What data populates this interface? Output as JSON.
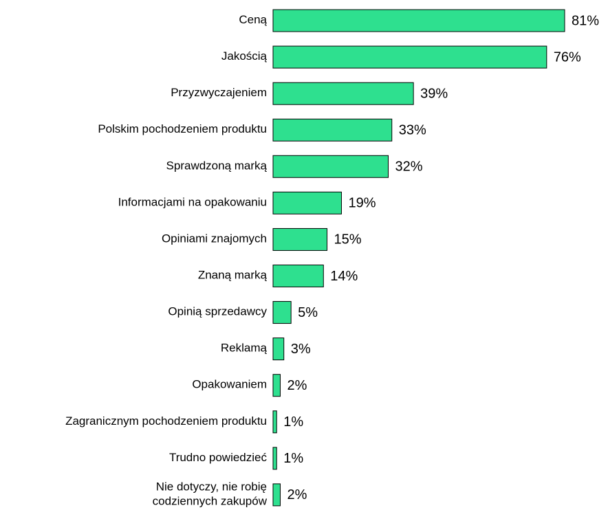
{
  "chart_data": {
    "type": "bar",
    "orientation": "horizontal",
    "categories": [
      "Ceną",
      "Jakością",
      "Przyzwyczajeniem",
      "Polskim pochodzeniem produktu",
      "Sprawdzoną marką",
      "Informacjami na opakowaniu",
      "Opiniami znajomych",
      "Znaną marką",
      "Opinią sprzedawcy",
      "Reklamą",
      "Opakowaniem",
      "Zagranicznym pochodzeniem produktu",
      "Trudno powiedzieć",
      "Nie dotyczy, nie robię\ncodziennych zakupów"
    ],
    "values": [
      81,
      76,
      39,
      33,
      32,
      19,
      15,
      14,
      5,
      3,
      2,
      1,
      1,
      2
    ],
    "value_labels": [
      "81%",
      "76%",
      "39%",
      "33%",
      "32%",
      "19%",
      "15%",
      "14%",
      "5%",
      "3%",
      "2%",
      "1%",
      "1%",
      "2%"
    ],
    "color": "#2ee08f",
    "xlim": [
      0,
      81
    ]
  }
}
